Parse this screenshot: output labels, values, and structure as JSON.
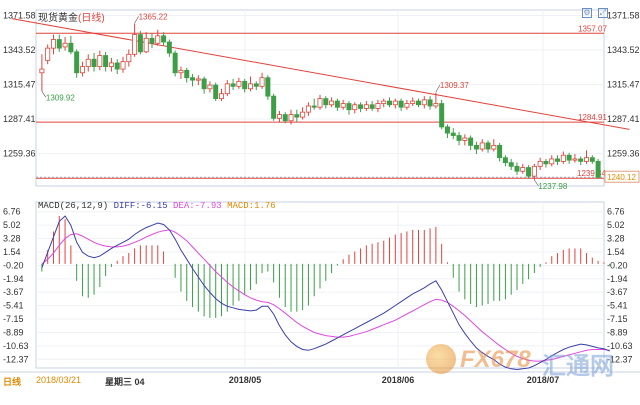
{
  "header": {
    "instrument": "现货黄金",
    "period": "(日线)"
  },
  "toolbar": {
    "icon1": "chart-settings-icon",
    "icon2": "expand-icon"
  },
  "colors": {
    "up": "#e0433c",
    "down": "#3c9e46",
    "level": "#e0433c",
    "dif": "#3b3fa8",
    "dea": "#e048e0"
  },
  "footer": {
    "period": "日线",
    "cursor_date": "2018/03/21",
    "weekday": "星期三",
    "extra": "04"
  },
  "chart_data": [
    {
      "type": "candlestick",
      "title": "现货黄金(日线)",
      "y_ticks": [
        "1371.58",
        "1343.52",
        "1315.47",
        "1287.41",
        "1259.36"
      ],
      "ylim": [
        1233,
        1376
      ],
      "x_ticks": [
        "2018/05",
        "2018/06",
        "2018/07"
      ],
      "levels": [
        {
          "value": 1357.07,
          "label": "1357.07"
        },
        {
          "value": 1284.91,
          "label": "1284.91"
        },
        {
          "value": 1239.34,
          "label": "1239.34"
        }
      ],
      "last_price": {
        "value": 1240.12,
        "label": "1240.12"
      },
      "trendline": {
        "from": [
          0,
          1369
        ],
        "to": [
          99,
          1279
        ]
      },
      "annotations": [
        {
          "label": "1365.22",
          "index": 16,
          "value": 1365.22,
          "pos": "top"
        },
        {
          "label": "1309.92",
          "index": 0,
          "value": 1309.92,
          "pos": "bottom"
        },
        {
          "label": "1309.37",
          "index": 68,
          "value": 1309.37,
          "pos": "top"
        },
        {
          "label": "1237.98",
          "index": 85,
          "value": 1237.98,
          "pos": "bottom"
        }
      ],
      "candles": [
        [
          1325,
          1328,
          1340,
          1310
        ],
        [
          1335,
          1345,
          1348,
          1332
        ],
        [
          1345,
          1352,
          1356,
          1340
        ],
        [
          1352,
          1345,
          1356,
          1342
        ],
        [
          1346,
          1349,
          1354,
          1343
        ],
        [
          1349,
          1342,
          1355,
          1340
        ],
        [
          1342,
          1325,
          1344,
          1321
        ],
        [
          1325,
          1330,
          1334,
          1322
        ],
        [
          1330,
          1336,
          1340,
          1326
        ],
        [
          1336,
          1330,
          1341,
          1326
        ],
        [
          1330,
          1339,
          1343,
          1327
        ],
        [
          1339,
          1330,
          1342,
          1326
        ],
        [
          1330,
          1333,
          1337,
          1326
        ],
        [
          1333,
          1328,
          1336,
          1324
        ],
        [
          1328,
          1334,
          1338,
          1325
        ],
        [
          1334,
          1340,
          1344,
          1330
        ],
        [
          1340,
          1356,
          1365,
          1338
        ],
        [
          1356,
          1342,
          1359,
          1340
        ],
        [
          1342,
          1353,
          1358,
          1341
        ],
        [
          1353,
          1349,
          1357,
          1345
        ],
        [
          1349,
          1355,
          1360,
          1347
        ],
        [
          1355,
          1350,
          1358,
          1347
        ],
        [
          1350,
          1341,
          1352,
          1338
        ],
        [
          1341,
          1325,
          1343,
          1322
        ],
        [
          1325,
          1327,
          1330,
          1320
        ],
        [
          1327,
          1321,
          1329,
          1317
        ],
        [
          1321,
          1319,
          1324,
          1314
        ],
        [
          1319,
          1320,
          1323,
          1315
        ],
        [
          1320,
          1312,
          1322,
          1308
        ],
        [
          1312,
          1315,
          1318,
          1309
        ],
        [
          1315,
          1304,
          1317,
          1302
        ],
        [
          1304,
          1308,
          1312,
          1302
        ],
        [
          1308,
          1316,
          1319,
          1306
        ],
        [
          1316,
          1314,
          1320,
          1311
        ],
        [
          1314,
          1318,
          1321,
          1312
        ],
        [
          1318,
          1312,
          1320,
          1309
        ],
        [
          1312,
          1316,
          1322,
          1310
        ],
        [
          1316,
          1314,
          1318,
          1311
        ],
        [
          1314,
          1321,
          1325,
          1312
        ],
        [
          1321,
          1306,
          1323,
          1303
        ],
        [
          1306,
          1288,
          1308,
          1286
        ],
        [
          1288,
          1291,
          1294,
          1285
        ],
        [
          1291,
          1286,
          1293,
          1284
        ],
        [
          1286,
          1291,
          1295,
          1283
        ],
        [
          1291,
          1289,
          1295,
          1285
        ],
        [
          1289,
          1293,
          1297,
          1287
        ],
        [
          1293,
          1298,
          1301,
          1290
        ],
        [
          1298,
          1297,
          1304,
          1295
        ],
        [
          1297,
          1304,
          1307,
          1295
        ],
        [
          1304,
          1299,
          1306,
          1296
        ],
        [
          1299,
          1302,
          1305,
          1297
        ],
        [
          1302,
          1297,
          1304,
          1294
        ],
        [
          1297,
          1300,
          1303,
          1295
        ],
        [
          1300,
          1295,
          1302,
          1291
        ],
        [
          1295,
          1299,
          1301,
          1292
        ],
        [
          1299,
          1296,
          1301,
          1293
        ],
        [
          1296,
          1299,
          1302,
          1294
        ],
        [
          1299,
          1296,
          1302,
          1294
        ],
        [
          1296,
          1300,
          1303,
          1293
        ],
        [
          1300,
          1302,
          1304,
          1297
        ],
        [
          1302,
          1299,
          1305,
          1297
        ],
        [
          1299,
          1302,
          1304,
          1296
        ],
        [
          1302,
          1297,
          1304,
          1294
        ],
        [
          1297,
          1300,
          1303,
          1295
        ],
        [
          1300,
          1302,
          1305,
          1298
        ],
        [
          1302,
          1299,
          1304,
          1297
        ],
        [
          1299,
          1303,
          1306,
          1296
        ],
        [
          1303,
          1298,
          1306,
          1295
        ],
        [
          1298,
          1300,
          1309,
          1296
        ],
        [
          1300,
          1281,
          1303,
          1279
        ],
        [
          1281,
          1276,
          1283,
          1272
        ],
        [
          1276,
          1274,
          1280,
          1271
        ],
        [
          1274,
          1270,
          1277,
          1266
        ],
        [
          1270,
          1272,
          1275,
          1266
        ],
        [
          1272,
          1266,
          1274,
          1262
        ],
        [
          1266,
          1263,
          1269,
          1259
        ],
        [
          1263,
          1268,
          1271,
          1261
        ],
        [
          1268,
          1263,
          1270,
          1260
        ],
        [
          1263,
          1266,
          1271,
          1261
        ],
        [
          1266,
          1256,
          1268,
          1253
        ],
        [
          1256,
          1252,
          1258,
          1249
        ],
        [
          1252,
          1249,
          1255,
          1246
        ],
        [
          1249,
          1245,
          1252,
          1242
        ],
        [
          1245,
          1248,
          1251,
          1243
        ],
        [
          1248,
          1241,
          1250,
          1239
        ],
        [
          1241,
          1249,
          1251,
          1238
        ],
        [
          1249,
          1253,
          1256,
          1246
        ],
        [
          1253,
          1251,
          1255,
          1248
        ],
        [
          1251,
          1255,
          1258,
          1249
        ],
        [
          1255,
          1253,
          1258,
          1250
        ],
        [
          1253,
          1258,
          1261,
          1251
        ],
        [
          1258,
          1254,
          1260,
          1251
        ],
        [
          1254,
          1255,
          1259,
          1252
        ],
        [
          1255,
          1253,
          1257,
          1250
        ],
        [
          1253,
          1256,
          1262,
          1251
        ],
        [
          1256,
          1253,
          1258,
          1251
        ],
        [
          1253,
          1240,
          1255,
          1239
        ]
      ]
    },
    {
      "type": "macd",
      "title": "MACD(26,12,9)",
      "labels": {
        "diff": "DIFF:-6.15",
        "dea": "DEA:-7.93",
        "macd": "MACD:1.76"
      },
      "y_ticks": [
        "6.76",
        "5.02",
        "3.28",
        "1.54",
        "-0.20",
        "-1.94",
        "-3.67",
        "-5.41",
        "-7.15",
        "-8.89",
        "-10.63",
        "-12.37"
      ],
      "ylim": [
        -13.5,
        7.5
      ],
      "dif": [
        -0.5,
        1.5,
        3.5,
        5.5,
        6.2,
        5.0,
        2.8,
        1.5,
        1.0,
        0.8,
        1.0,
        1.5,
        2.0,
        2.4,
        2.8,
        3.2,
        3.8,
        4.3,
        4.7,
        5.0,
        5.3,
        5.1,
        4.4,
        3.2,
        1.8,
        0.6,
        -0.6,
        -1.7,
        -2.8,
        -3.7,
        -4.5,
        -5.1,
        -5.5,
        -5.7,
        -5.9,
        -6.0,
        -6.1,
        -6.0,
        -5.5,
        -5.5,
        -6.5,
        -8.0,
        -9.2,
        -10.1,
        -10.7,
        -11.1,
        -11.2,
        -11.0,
        -10.7,
        -10.4,
        -10.0,
        -9.6,
        -9.2,
        -8.8,
        -8.4,
        -8.0,
        -7.6,
        -7.2,
        -6.8,
        -6.4,
        -5.9,
        -5.4,
        -4.9,
        -4.4,
        -3.9,
        -3.5,
        -3.1,
        -2.6,
        -2.2,
        -3.4,
        -4.9,
        -6.4,
        -7.9,
        -9.0,
        -10.0,
        -10.9,
        -11.5,
        -12.0,
        -12.4,
        -13.0,
        -13.4,
        -13.6,
        -13.7,
        -13.6,
        -13.5,
        -13.2,
        -12.8,
        -12.4,
        -11.9,
        -11.5,
        -11.1,
        -10.8,
        -10.6,
        -10.4,
        -10.5,
        -10.7,
        -10.9,
        -11.0,
        -11.3
      ],
      "dea": [
        0.0,
        0.6,
        1.4,
        2.4,
        3.3,
        3.8,
        3.9,
        3.6,
        3.2,
        2.8,
        2.5,
        2.3,
        2.2,
        2.2,
        2.3,
        2.5,
        2.8,
        3.1,
        3.5,
        3.8,
        4.1,
        4.3,
        4.4,
        4.1,
        3.6,
        3.0,
        2.2,
        1.4,
        0.6,
        -0.2,
        -1.0,
        -1.7,
        -2.4,
        -3.0,
        -3.5,
        -4.0,
        -4.4,
        -4.7,
        -4.9,
        -5.0,
        -5.3,
        -5.8,
        -6.4,
        -7.0,
        -7.6,
        -8.1,
        -8.5,
        -8.9,
        -9.1,
        -9.3,
        -9.4,
        -9.5,
        -9.5,
        -9.4,
        -9.2,
        -9.0,
        -8.8,
        -8.5,
        -8.2,
        -7.9,
        -7.6,
        -7.3,
        -6.9,
        -6.5,
        -6.1,
        -5.7,
        -5.3,
        -4.9,
        -4.6,
        -4.7,
        -5.0,
        -5.5,
        -6.1,
        -6.7,
        -7.4,
        -8.1,
        -8.8,
        -9.4,
        -10.0,
        -10.6,
        -11.1,
        -11.6,
        -12.0,
        -12.3,
        -12.5,
        -12.6,
        -12.6,
        -12.5,
        -12.4,
        -12.2,
        -12.0,
        -11.8,
        -11.6,
        -11.4,
        -11.2,
        -11.1,
        -11.1,
        -11.1,
        -11.2
      ]
    }
  ]
}
